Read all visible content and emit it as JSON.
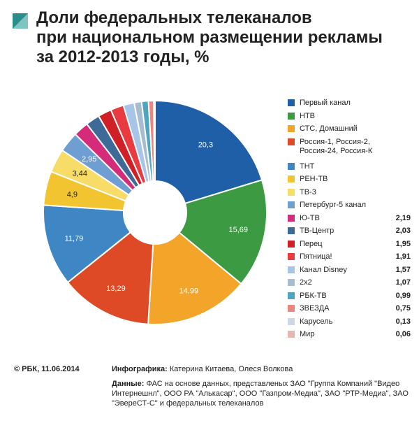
{
  "header": {
    "title_lines": [
      "Доли федеральных телеканалов",
      "при национальном размещении рекламы",
      "за 2012-2013 годы, %"
    ],
    "accent_color": "#2a8d8a"
  },
  "chart_data": {
    "type": "pie",
    "style": "donut",
    "title": "Доли федеральных телеканалов при национальном размещении рекламы за 2012-2013 годы, %",
    "start_direction": "top",
    "order": "clockwise",
    "slices": [
      {
        "name": "Первый канал",
        "value": 20.3,
        "label": "20,3",
        "color": "#1f5fa8",
        "label_color": "#ffffff"
      },
      {
        "name": "НТВ",
        "value": 15.69,
        "label": "15,69",
        "color": "#3b9a42",
        "label_color": "#ffffff"
      },
      {
        "name": "СТС, Домашний",
        "value": 14.99,
        "label": "14,99",
        "color": "#f3a52a",
        "label_color": "#ffffff"
      },
      {
        "name": "Россия-1, Россия-2, Россия-24, Россия-К",
        "value": 13.29,
        "label": "13,29",
        "color": "#dd4a25",
        "label_color": "#ffffff"
      },
      {
        "name": "ТНТ",
        "value": 11.79,
        "label": "11,79",
        "color": "#3e86c4",
        "label_color": "#ffffff"
      },
      {
        "name": "РЕН-ТВ",
        "value": 4.9,
        "label": "4,9",
        "color": "#f2c42f",
        "label_color": "#222222"
      },
      {
        "name": "ТВ-3",
        "value": 3.44,
        "label": "3,44",
        "color": "#f7dc68",
        "label_color": "#222222"
      },
      {
        "name": "Петербург-5 канал",
        "value": 2.95,
        "label": "2,95",
        "color": "#6f9ed3",
        "label_color": "#ffffff"
      },
      {
        "name": "Ю-ТВ",
        "value": 2.19,
        "label": "2,19",
        "color": "#d42b7a",
        "label_color": "#ffffff"
      },
      {
        "name": "ТВ-Центр",
        "value": 2.03,
        "label": "2,03",
        "color": "#3e6a97",
        "label_color": "#ffffff"
      },
      {
        "name": "Перец",
        "value": 1.95,
        "label": "1,95",
        "color": "#cf2027",
        "label_color": "#ffffff"
      },
      {
        "name": "Пятница!",
        "value": 1.91,
        "label": "1,91",
        "color": "#e93a3f",
        "label_color": "#ffffff"
      },
      {
        "name": "Канал Disney",
        "value": 1.57,
        "label": "1,57",
        "color": "#a8c5e8",
        "label_color": "#222222"
      },
      {
        "name": "2x2",
        "value": 1.07,
        "label": "1,07",
        "color": "#a7bccf",
        "label_color": "#222222"
      },
      {
        "name": "РБК-ТВ",
        "value": 0.99,
        "label": "0,99",
        "color": "#4fa5bd",
        "label_color": "#ffffff"
      },
      {
        "name": "ЗВЕЗДА",
        "value": 0.75,
        "label": "0,75",
        "color": "#ea8580",
        "label_color": "#222222"
      },
      {
        "name": "Карусель",
        "value": 0.13,
        "label": "0,13",
        "color": "#cfd6e5",
        "label_color": "#222222"
      },
      {
        "name": "Мир",
        "value": 0.06,
        "label": "0,06",
        "color": "#e6b7b0",
        "label_color": "#222222"
      }
    ],
    "inner_labels_for_first": 8,
    "legend_placement": "right"
  },
  "footer": {
    "copyright": "© РБК, 11.06.2014",
    "credits_label": "Инфографика:",
    "credits_text": " Катерина Китаева, Олеся Волкова",
    "sources_label": "Данные:",
    "sources_text": " ФАС на основе данных, представленых ЗАО \"Группа Компаний \"Видео Интернешнл\", ООО РА \"Алькасар\", ООО \"Газпром-Медиа\", ЗАО \"РТР-Медиа\", ЗАО \"ЭвереСТ-С\" и федеральных телеканалов"
  }
}
